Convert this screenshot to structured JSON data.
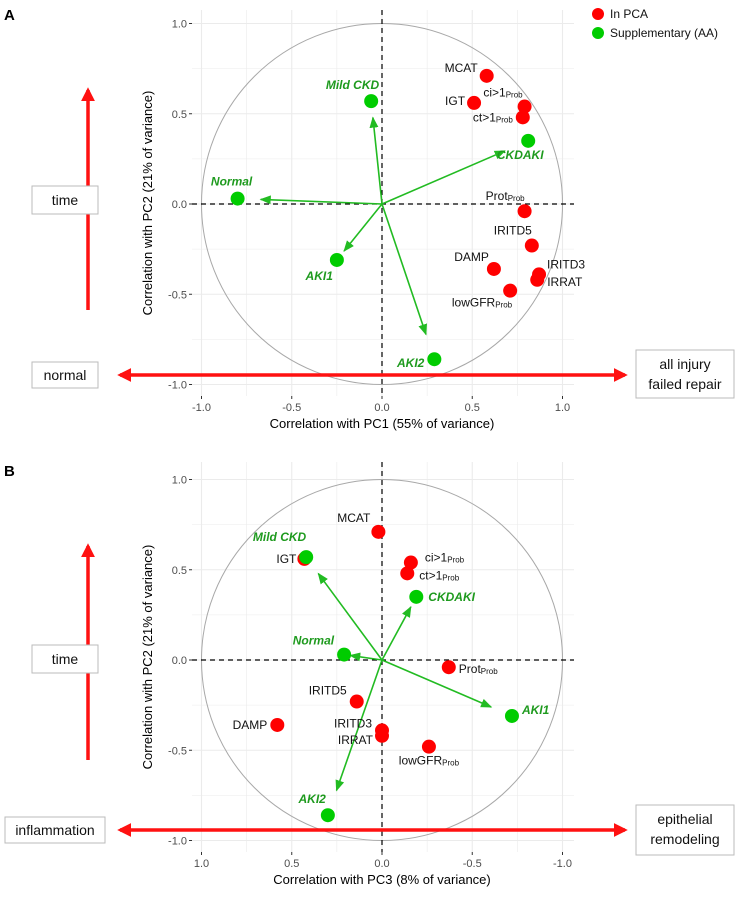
{
  "legend": {
    "items": [
      {
        "label": "In PCA",
        "color": "#ff0000"
      },
      {
        "label": "Supplementary (AA)",
        "color": "#00cc00"
      }
    ]
  },
  "chart_data": [
    {
      "panel": "A",
      "type": "scatter",
      "xlabel": "Correlation with PC1 (55% of variance)",
      "ylabel": "Correlation with PC2 (21% of variance)",
      "xlim": [
        -1.1,
        1.1
      ],
      "ylim": [
        -1.1,
        1.1
      ],
      "x_reversed": false,
      "xticks": [
        "-1.0",
        "-0.5",
        "0.0",
        "0.5",
        "1.0"
      ],
      "yticks": [
        "1.0",
        "0.5",
        "0.0",
        "-0.5",
        "-1.0"
      ],
      "grid": true,
      "annotations": {
        "up_arrow": "time",
        "left": "normal",
        "right": [
          "all injury",
          "failed repair"
        ]
      },
      "points": [
        {
          "label": "MCAT",
          "sub": "",
          "group": "In PCA",
          "x": 0.58,
          "y": 0.71
        },
        {
          "label": "IGT",
          "sub": "",
          "group": "In PCA",
          "x": 0.51,
          "y": 0.56
        },
        {
          "label": "ci>1",
          "sub": "Prob",
          "group": "In PCA",
          "x": 0.79,
          "y": 0.54
        },
        {
          "label": "ct>1",
          "sub": "Prob",
          "group": "In PCA",
          "x": 0.78,
          "y": 0.48
        },
        {
          "label": "Prot",
          "sub": "Prob",
          "group": "In PCA",
          "x": 0.79,
          "y": -0.04
        },
        {
          "label": "IRITD5",
          "sub": "",
          "group": "In PCA",
          "x": 0.83,
          "y": -0.23
        },
        {
          "label": "DAMP",
          "sub": "",
          "group": "In PCA",
          "x": 0.62,
          "y": -0.36
        },
        {
          "label": "IRITD3",
          "sub": "",
          "group": "In PCA",
          "x": 0.87,
          "y": -0.39
        },
        {
          "label": "IRRAT",
          "sub": "",
          "group": "In PCA",
          "x": 0.86,
          "y": -0.42
        },
        {
          "label": "lowGFR",
          "sub": "Prob",
          "group": "In PCA",
          "x": 0.71,
          "y": -0.48
        },
        {
          "label": "CKDAKI",
          "sub": "",
          "group": "Supplementary (AA)",
          "x": 0.81,
          "y": 0.35
        },
        {
          "label": "Mild CKD",
          "sub": "",
          "group": "Supplementary (AA)",
          "x": -0.06,
          "y": 0.57
        },
        {
          "label": "Normal",
          "sub": "",
          "group": "Supplementary (AA)",
          "x": -0.8,
          "y": 0.03
        },
        {
          "label": "AKI1",
          "sub": "",
          "group": "Supplementary (AA)",
          "x": -0.25,
          "y": -0.31
        },
        {
          "label": "AKI2",
          "sub": "",
          "group": "Supplementary (AA)",
          "x": 0.29,
          "y": -0.86
        }
      ]
    },
    {
      "panel": "B",
      "type": "scatter",
      "xlabel": "Correlation with PC3 (8% of variance)",
      "ylabel": "Correlation with PC2 (21% of variance)",
      "xlim": [
        1.1,
        -1.1
      ],
      "ylim": [
        -1.1,
        1.1
      ],
      "x_reversed": true,
      "xticks": [
        "1.0",
        "0.5",
        "0.0",
        "-0.5",
        "-1.0"
      ],
      "yticks": [
        "1.0",
        "0.5",
        "0.0",
        "-0.5",
        "-1.0"
      ],
      "grid": true,
      "annotations": {
        "up_arrow": "time",
        "left": "inflammation",
        "right": [
          "epithelial",
          "remodeling"
        ]
      },
      "points": [
        {
          "label": "MCAT",
          "sub": "",
          "group": "In PCA",
          "x": 0.02,
          "y": 0.71
        },
        {
          "label": "IGT",
          "sub": "",
          "group": "In PCA",
          "x": 0.43,
          "y": 0.56
        },
        {
          "label": "ci>1",
          "sub": "Prob",
          "group": "In PCA",
          "x": -0.16,
          "y": 0.54
        },
        {
          "label": "ct>1",
          "sub": "Prob",
          "group": "In PCA",
          "x": -0.14,
          "y": 0.48
        },
        {
          "label": "Prot",
          "sub": "Prob",
          "group": "In PCA",
          "x": -0.37,
          "y": -0.04
        },
        {
          "label": "IRITD5",
          "sub": "",
          "group": "In PCA",
          "x": 0.14,
          "y": -0.23
        },
        {
          "label": "DAMP",
          "sub": "",
          "group": "In PCA",
          "x": 0.58,
          "y": -0.36
        },
        {
          "label": "IRITD3",
          "sub": "",
          "group": "In PCA",
          "x": 0.0,
          "y": -0.39
        },
        {
          "label": "IRRAT",
          "sub": "",
          "group": "In PCA",
          "x": 0.0,
          "y": -0.42
        },
        {
          "label": "lowGFR",
          "sub": "Prob",
          "group": "In PCA",
          "x": -0.26,
          "y": -0.48
        },
        {
          "label": "Mild CKD",
          "sub": "",
          "group": "Supplementary (AA)",
          "x": 0.42,
          "y": 0.57
        },
        {
          "label": "CKDAKI",
          "sub": "",
          "group": "Supplementary (AA)",
          "x": -0.19,
          "y": 0.35
        },
        {
          "label": "Normal",
          "sub": "",
          "group": "Supplementary (AA)",
          "x": 0.21,
          "y": 0.03
        },
        {
          "label": "AKI1",
          "sub": "",
          "group": "Supplementary (AA)",
          "x": -0.72,
          "y": -0.31
        },
        {
          "label": "AKI2",
          "sub": "",
          "group": "Supplementary (AA)",
          "x": 0.3,
          "y": -0.86
        }
      ]
    }
  ]
}
